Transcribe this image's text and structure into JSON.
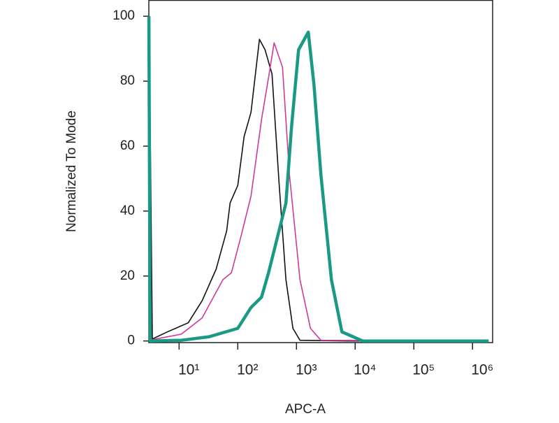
{
  "chart_data": {
    "type": "line",
    "x_axis_label": "APC-A",
    "y_axis_label": "Normalized To Mode",
    "xscale": "log",
    "xlim": [
      3.05,
      2200000
    ],
    "ylim": [
      -0.5,
      105
    ],
    "xticks": [
      {
        "value": 10,
        "label": "10¹"
      },
      {
        "value": 100,
        "label": "10²"
      },
      {
        "value": 1000,
        "label": "10³"
      },
      {
        "value": 10000,
        "label": "10⁴"
      },
      {
        "value": 100000,
        "label": "10⁵"
      },
      {
        "value": 1000000,
        "label": "10⁶"
      }
    ],
    "yticks": [
      0,
      20,
      40,
      60,
      80,
      100
    ],
    "series": [
      {
        "color": "#111111",
        "width": 1.6,
        "x": [
          3.08,
          3.5,
          6.3,
          14.3,
          24.7,
          42.8,
          64.6,
          74,
          100,
          128,
          168,
          234,
          291,
          383,
          504,
          662,
          871,
          1148,
          7800,
          1880000
        ],
        "values": [
          100,
          0.6,
          2.8,
          5.6,
          12.4,
          22.1,
          33.9,
          42.5,
          47.9,
          62.9,
          70.4,
          92.9,
          89.7,
          82.2,
          48.9,
          18.9,
          3.9,
          0.2,
          0,
          0
        ]
      },
      {
        "color": "#d0399a",
        "width": 1.6,
        "x": [
          3.5,
          10.9,
          24.7,
          56,
          78,
          112,
          168,
          254,
          334,
          416,
          578,
          760,
          1148,
          1730,
          2610,
          1880000
        ],
        "values": [
          0.4,
          2.1,
          7.1,
          18.9,
          21,
          31.8,
          44.6,
          68.2,
          81.1,
          91.8,
          84.3,
          51.1,
          18.9,
          3.9,
          0.2,
          0
        ]
      },
      {
        "color": "#1a9a85",
        "width": 4.5,
        "x": [
          3.06,
          3.2,
          10.9,
          32.5,
          100,
          168,
          254,
          334,
          504,
          662,
          826,
          1087,
          1592,
          1986,
          2610,
          3935,
          5943,
          13500,
          1880000
        ],
        "values": [
          100,
          0,
          0.2,
          1.3,
          3.9,
          10.3,
          13.5,
          21,
          33.9,
          42.5,
          66.1,
          89.7,
          95.1,
          79,
          51.1,
          18.9,
          2.8,
          0,
          0
        ]
      }
    ]
  }
}
